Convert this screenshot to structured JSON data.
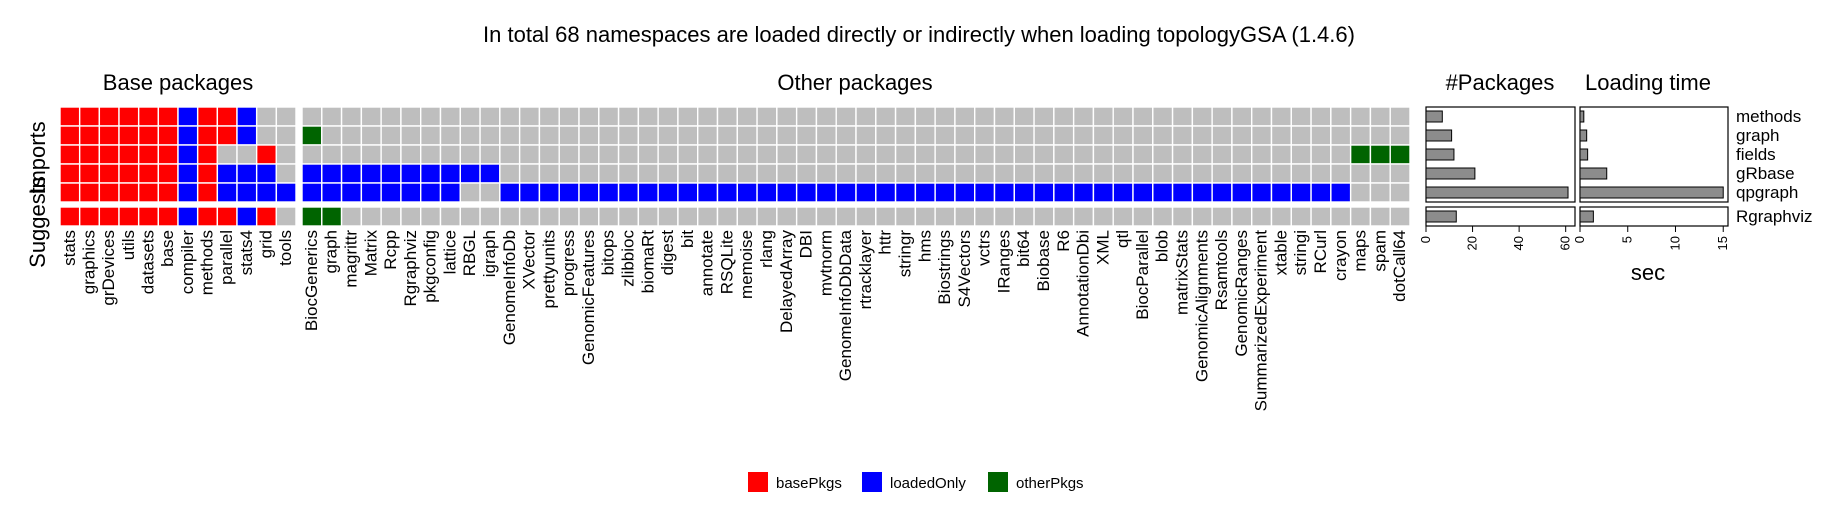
{
  "chart_data": {
    "type": "heatmap",
    "title": "In total 68 namespaces are loaded directly or indirectly when loading topologyGSA (1.4.6)",
    "row_groups": {
      "imports": "Imports",
      "suggests": "Suggests"
    },
    "rows": [
      "methods",
      "graph",
      "fields",
      "gRbase",
      "qpgraph",
      "Rgraphviz"
    ],
    "panels": {
      "base": {
        "title": "Base packages",
        "columns": [
          "stats",
          "graphics",
          "grDevices",
          "utils",
          "datasets",
          "base",
          "compiler",
          "methods",
          "parallel",
          "stats4",
          "grid",
          "tools"
        ],
        "cells": [
          [
            "R",
            "R",
            "R",
            "R",
            "R",
            "R",
            "B",
            "R",
            "R",
            "B",
            "G",
            "G"
          ],
          [
            "R",
            "R",
            "R",
            "R",
            "R",
            "R",
            "B",
            "R",
            "R",
            "B",
            "G",
            "G"
          ],
          [
            "R",
            "R",
            "R",
            "R",
            "R",
            "R",
            "B",
            "R",
            "G",
            "G",
            "R",
            "G"
          ],
          [
            "R",
            "R",
            "R",
            "R",
            "R",
            "R",
            "B",
            "R",
            "B",
            "B",
            "B",
            "G"
          ],
          [
            "R",
            "R",
            "R",
            "R",
            "R",
            "R",
            "B",
            "R",
            "B",
            "B",
            "B",
            "B"
          ],
          [
            "R",
            "R",
            "R",
            "R",
            "R",
            "R",
            "B",
            "R",
            "R",
            "B",
            "R",
            "G"
          ]
        ]
      },
      "other": {
        "title": "Other packages",
        "columns": [
          "BiocGenerics",
          "graph",
          "magrittr",
          "Matrix",
          "Rcpp",
          "Rgraphviz",
          "pkgconfig",
          "lattice",
          "RBGL",
          "igraph",
          "GenomeInfoDb",
          "XVector",
          "prettyunits",
          "progress",
          "GenomicFeatures",
          "bitops",
          "zlibbioc",
          "biomaRt",
          "digest",
          "bit",
          "annotate",
          "RSQLite",
          "memoise",
          "rlang",
          "DelayedArray",
          "DBI",
          "mvtnorm",
          "GenomeInfoDbData",
          "rtracklayer",
          "httr",
          "stringr",
          "hms",
          "Biostrings",
          "S4Vectors",
          "vctrs",
          "IRanges",
          "bit64",
          "Biobase",
          "R6",
          "AnnotationDbi",
          "XML",
          "qtl",
          "BiocParallel",
          "blob",
          "matrixStats",
          "GenomicAlignments",
          "Rsamtools",
          "GenomicRanges",
          "SummarizedExperiment",
          "xtable",
          "stringi",
          "RCurl",
          "crayon",
          "maps",
          "spam",
          "dotCall64"
        ],
        "cells": [
          "GGGGGGGGGGGGGGGGGGGGGGGGGGGGGGGGGGGGGGGGGGGGGGGGGGGGGGGG",
          "DGGGGGGGGGGGGGGGGGGGGGGGGGGGGGGGGGGGGGGGGGGGGGGGGGGGGGGG",
          "GGGGGGGGGGGGGGGGGGGGGGGGGGGGGGGGGGGGGGGGGGGGGGGGGGGGGDDD",
          "BBBBBBBBBBGGGGGGGGGGGGGGGGGGGGGGGGGGGGGGGGGGGGGGGGGGGGGG",
          "BBBBBBBBGGBBBBBBBBBBBBBBBBBBBBBBBBBBBBBBBBBBBBBBBBBBBGGG",
          "DDGGGGGGGGGGGGGGGGGGGGGGGGGGGGGGGGGGGGGGGGGGGGGGGGGGGGGG"
        ]
      }
    },
    "packages_panel": {
      "title": "#Packages",
      "values": [
        7,
        11,
        12,
        21,
        61,
        13
      ],
      "xlim": [
        0,
        64
      ],
      "ticks": [
        "0",
        "20",
        "40",
        "60"
      ],
      "tick_values": [
        0,
        20,
        40,
        60
      ],
      "xlabel": ""
    },
    "loading_panel": {
      "title": "Loading time",
      "values": [
        0.4,
        0.7,
        0.8,
        2.8,
        15,
        1.4
      ],
      "xlim": [
        0,
        15.5
      ],
      "ticks": [
        "0",
        "5",
        "10",
        "15"
      ],
      "tick_values": [
        0,
        5,
        10,
        15
      ],
      "xlabel": "sec"
    },
    "legend": [
      {
        "label": "basePkgs",
        "color": "#ff0000"
      },
      {
        "label": "loadedOnly",
        "color": "#0000ff"
      },
      {
        "label": "otherPkgs",
        "color": "#006400"
      }
    ],
    "colors": {
      "R": "#ff0000",
      "B": "#0000ff",
      "D": "#006400",
      "G": "#bebebe",
      "bar": "#8c8c8c"
    }
  }
}
